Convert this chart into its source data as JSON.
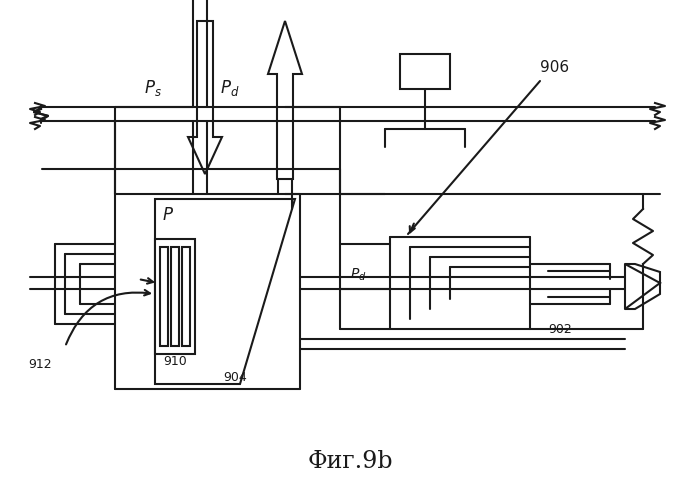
{
  "title": "Фиг.9b",
  "bg_color": "#ffffff",
  "line_color": "#1a1a1a",
  "lw": 1.5,
  "fig_width": 7.0,
  "fig_height": 4.89
}
